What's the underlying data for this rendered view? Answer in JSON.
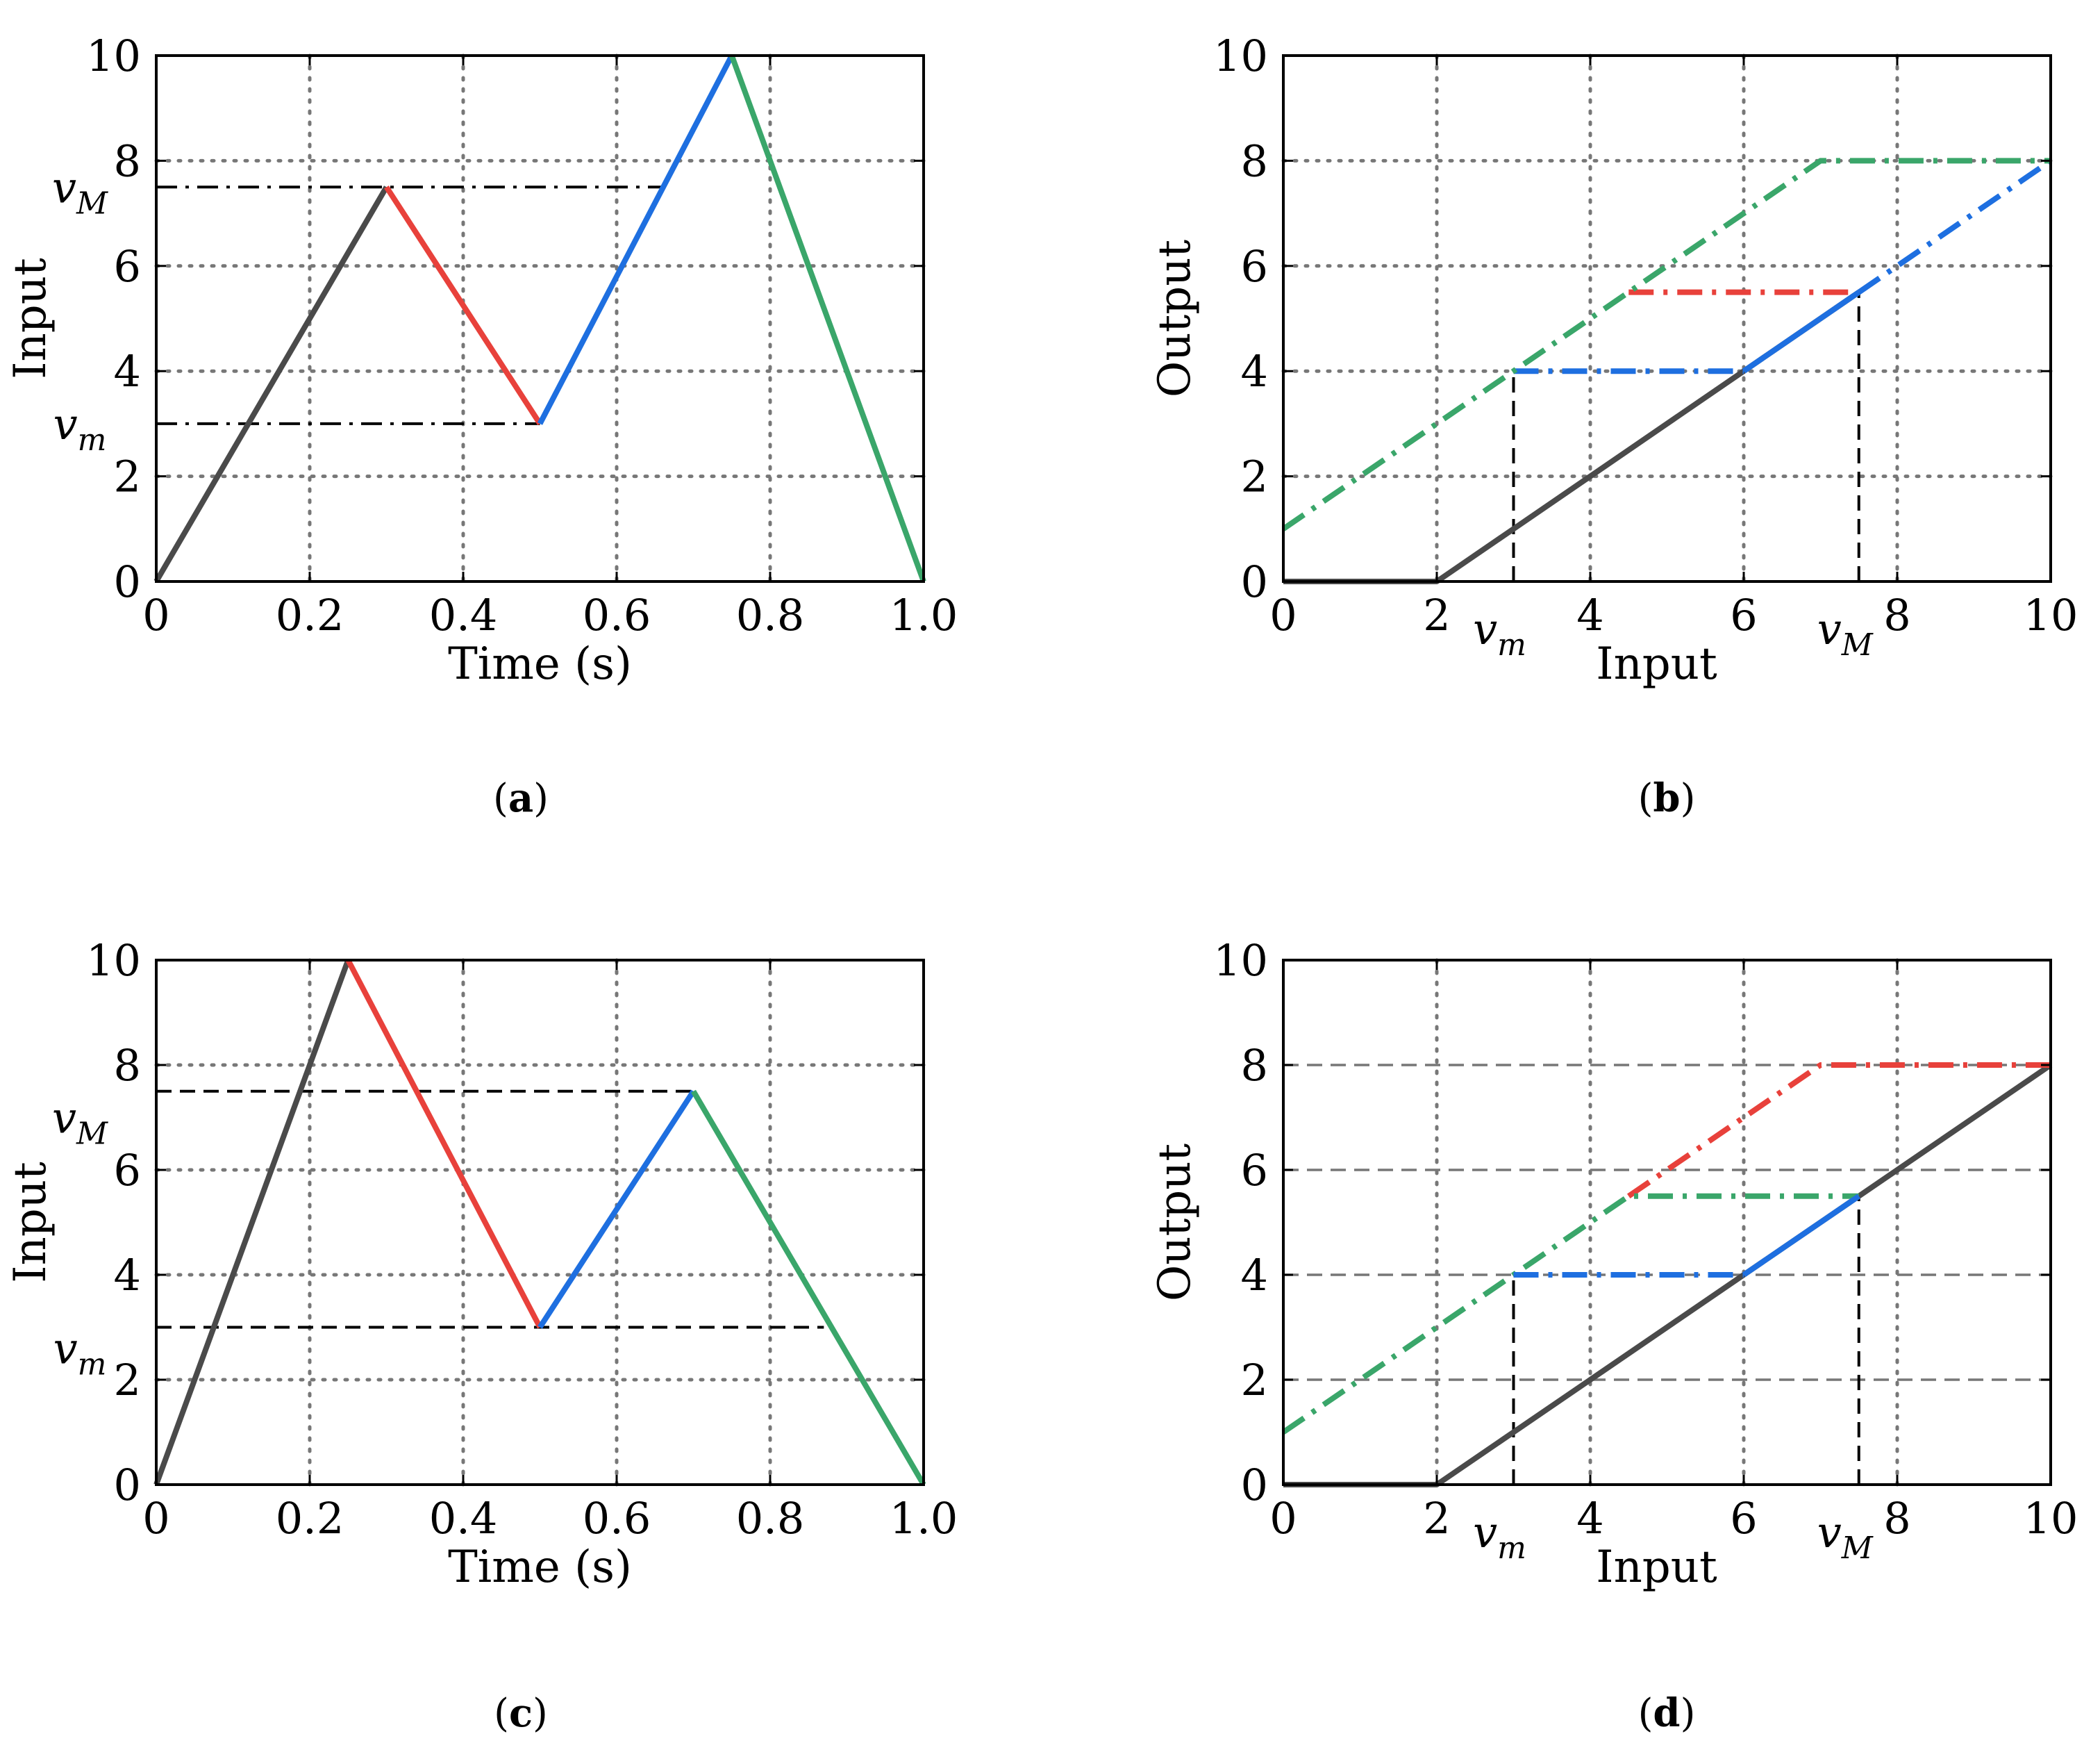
{
  "colors": {
    "black": "#4a4a4a",
    "red": "#e8413b",
    "blue": "#1e6fe0",
    "green": "#3aa66a",
    "grid": "#777777",
    "guide": "#000000"
  },
  "chart_data": [
    {
      "id": "a",
      "type": "line",
      "caption": "a",
      "xlabel": "Time (s)",
      "ylabel": "Input",
      "xlim": [
        0,
        1.0
      ],
      "ylim": [
        0,
        10
      ],
      "xticks": [
        {
          "v": 0,
          "l": "0"
        },
        {
          "v": 0.2,
          "l": "0.2"
        },
        {
          "v": 0.4,
          "l": "0.4"
        },
        {
          "v": 0.6,
          "l": "0.6"
        },
        {
          "v": 0.8,
          "l": "0.8"
        },
        {
          "v": 1.0,
          "l": "1.0"
        }
      ],
      "yticks": [
        {
          "v": 0,
          "l": "0"
        },
        {
          "v": 2,
          "l": "2"
        },
        {
          "v": 4,
          "l": "4"
        },
        {
          "v": 6,
          "l": "6"
        },
        {
          "v": 8,
          "l": "8"
        },
        {
          "v": 10,
          "l": "10"
        }
      ],
      "grid": "dotted",
      "series": [
        {
          "name": "rise-1",
          "color": "black",
          "style": "solid",
          "x": [
            0,
            0.3
          ],
          "y": [
            0,
            7.5
          ]
        },
        {
          "name": "fall-1",
          "color": "red",
          "style": "solid",
          "x": [
            0.3,
            0.5
          ],
          "y": [
            7.5,
            3
          ]
        },
        {
          "name": "rise-2",
          "color": "blue",
          "style": "solid",
          "x": [
            0.5,
            0.75
          ],
          "y": [
            3,
            10
          ]
        },
        {
          "name": "fall-2",
          "color": "green",
          "style": "solid",
          "x": [
            0.75,
            1.0
          ],
          "y": [
            10,
            0
          ]
        }
      ],
      "guides": [
        {
          "name": "vM-guide",
          "style": "dashdot",
          "x": [
            0,
            0.66
          ],
          "y": [
            7.5,
            7.5
          ]
        },
        {
          "name": "vm-guide",
          "style": "dashdot",
          "x": [
            0,
            0.5
          ],
          "y": [
            3,
            3
          ]
        }
      ],
      "annotations": [
        {
          "name": "vM-label",
          "base": "v",
          "sub": "M",
          "axis": "y",
          "value": 7.5
        },
        {
          "name": "vm-label",
          "base": "v",
          "sub": "m",
          "axis": "y",
          "value": 3
        }
      ]
    },
    {
      "id": "b",
      "type": "line",
      "caption": "b",
      "xlabel": "Input",
      "ylabel": "Output",
      "xlim": [
        0,
        10
      ],
      "ylim": [
        0,
        10
      ],
      "xticks": [
        {
          "v": 0,
          "l": "0"
        },
        {
          "v": 2,
          "l": "2"
        },
        {
          "v": 4,
          "l": "4"
        },
        {
          "v": 6,
          "l": "6"
        },
        {
          "v": 8,
          "l": "8"
        },
        {
          "v": 10,
          "l": "10"
        }
      ],
      "yticks": [
        {
          "v": 0,
          "l": "0"
        },
        {
          "v": 2,
          "l": "2"
        },
        {
          "v": 4,
          "l": "4"
        },
        {
          "v": 6,
          "l": "6"
        },
        {
          "v": 8,
          "l": "8"
        },
        {
          "v": 10,
          "l": "10"
        }
      ],
      "grid": "dotted",
      "series": [
        {
          "name": "black-branch",
          "color": "black",
          "style": "solid",
          "x": [
            0,
            2,
            7.5
          ],
          "y": [
            0,
            0,
            5.5
          ]
        },
        {
          "name": "red-branch",
          "color": "red",
          "style": "dashdot",
          "x": [
            4.5,
            7.5
          ],
          "y": [
            5.5,
            5.5
          ]
        },
        {
          "name": "blue-branch-flat",
          "color": "blue",
          "style": "dashdot",
          "x": [
            3,
            6
          ],
          "y": [
            4,
            4
          ]
        },
        {
          "name": "blue-branch-rise",
          "color": "blue",
          "style": "solid",
          "x": [
            6,
            7.5
          ],
          "y": [
            4,
            5.5
          ]
        },
        {
          "name": "blue-branch-end",
          "color": "blue",
          "style": "dashdot",
          "x": [
            7.5,
            10
          ],
          "y": [
            5.5,
            8
          ]
        },
        {
          "name": "green-branch",
          "color": "green",
          "style": "dashdot",
          "x": [
            0,
            7,
            10
          ],
          "y": [
            1,
            8,
            8
          ]
        }
      ],
      "guides": [
        {
          "name": "vm-drop",
          "style": "dashed",
          "x": [
            3,
            3
          ],
          "y": [
            0,
            4
          ]
        },
        {
          "name": "vM-drop",
          "style": "dashed",
          "x": [
            7.5,
            7.5
          ],
          "y": [
            0,
            5.5
          ]
        }
      ],
      "annotations": [
        {
          "name": "vm-label",
          "base": "v",
          "sub": "m",
          "axis": "x",
          "value": 3
        },
        {
          "name": "vM-label",
          "base": "v",
          "sub": "M",
          "axis": "x",
          "value": 7.5
        }
      ]
    },
    {
      "id": "c",
      "type": "line",
      "caption": "c",
      "xlabel": "Time (s)",
      "ylabel": "Input",
      "xlim": [
        0,
        1.0
      ],
      "ylim": [
        0,
        10
      ],
      "xticks": [
        {
          "v": 0,
          "l": "0"
        },
        {
          "v": 0.2,
          "l": "0.2"
        },
        {
          "v": 0.4,
          "l": "0.4"
        },
        {
          "v": 0.6,
          "l": "0.6"
        },
        {
          "v": 0.8,
          "l": "0.8"
        },
        {
          "v": 1.0,
          "l": "1.0"
        }
      ],
      "yticks": [
        {
          "v": 0,
          "l": "0"
        },
        {
          "v": 2,
          "l": "2"
        },
        {
          "v": 4,
          "l": "4"
        },
        {
          "v": 6,
          "l": "6"
        },
        {
          "v": 8,
          "l": "8"
        },
        {
          "v": 10,
          "l": "10"
        }
      ],
      "grid": "dotted",
      "series": [
        {
          "name": "rise-1",
          "color": "black",
          "style": "solid",
          "x": [
            0,
            0.25
          ],
          "y": [
            0,
            10
          ]
        },
        {
          "name": "fall-1",
          "color": "red",
          "style": "solid",
          "x": [
            0.25,
            0.5
          ],
          "y": [
            10,
            3
          ]
        },
        {
          "name": "rise-2",
          "color": "blue",
          "style": "solid",
          "x": [
            0.5,
            0.7
          ],
          "y": [
            3,
            7.5
          ]
        },
        {
          "name": "fall-2",
          "color": "green",
          "style": "solid",
          "x": [
            0.7,
            1.0
          ],
          "y": [
            7.5,
            0
          ]
        }
      ],
      "guides": [
        {
          "name": "vM-guide",
          "style": "dashed",
          "x": [
            0,
            0.7
          ],
          "y": [
            7.5,
            7.5
          ]
        },
        {
          "name": "vm-guide",
          "style": "dashed",
          "x": [
            0,
            0.87
          ],
          "y": [
            3,
            3
          ]
        }
      ],
      "annotations": [
        {
          "name": "vM-label",
          "base": "v",
          "sub": "M",
          "axis": "y",
          "value": 7.0
        },
        {
          "name": "vm-label",
          "base": "v",
          "sub": "m",
          "axis": "y",
          "value": 2.6
        }
      ]
    },
    {
      "id": "d",
      "type": "line",
      "caption": "d",
      "xlabel": "Input",
      "ylabel": "Output",
      "xlim": [
        0,
        10
      ],
      "ylim": [
        0,
        10
      ],
      "xticks": [
        {
          "v": 0,
          "l": "0"
        },
        {
          "v": 2,
          "l": "2"
        },
        {
          "v": 4,
          "l": "4"
        },
        {
          "v": 6,
          "l": "6"
        },
        {
          "v": 8,
          "l": "8"
        },
        {
          "v": 10,
          "l": "10"
        }
      ],
      "yticks": [
        {
          "v": 0,
          "l": "0"
        },
        {
          "v": 2,
          "l": "2"
        },
        {
          "v": 4,
          "l": "4"
        },
        {
          "v": 6,
          "l": "6"
        },
        {
          "v": 8,
          "l": "8"
        },
        {
          "v": 10,
          "l": "10"
        }
      ],
      "grid": "dashed-y-dotted-x",
      "series": [
        {
          "name": "black-branch",
          "color": "black",
          "style": "solid",
          "x": [
            0,
            2,
            10
          ],
          "y": [
            0,
            0,
            8
          ]
        },
        {
          "name": "red-branch",
          "color": "red",
          "style": "dashdot",
          "x": [
            4.5,
            7,
            10
          ],
          "y": [
            5.5,
            8,
            8
          ]
        },
        {
          "name": "green-branch-flat",
          "color": "green",
          "style": "dashdot",
          "x": [
            0,
            4.5,
            7.5
          ],
          "y": [
            1,
            5.5,
            5.5
          ]
        },
        {
          "name": "blue-branch-flat",
          "color": "blue",
          "style": "dashdot",
          "x": [
            3,
            6
          ],
          "y": [
            4,
            4
          ]
        },
        {
          "name": "blue-branch-rise",
          "color": "blue",
          "style": "solid",
          "x": [
            6,
            7.5
          ],
          "y": [
            4,
            5.5
          ]
        }
      ],
      "guides": [
        {
          "name": "vm-drop",
          "style": "dashed",
          "x": [
            3,
            3
          ],
          "y": [
            0,
            4
          ]
        },
        {
          "name": "vM-drop",
          "style": "dashed",
          "x": [
            7.5,
            7.5
          ],
          "y": [
            0,
            5.5
          ]
        }
      ],
      "annotations": [
        {
          "name": "vm-label",
          "base": "v",
          "sub": "m",
          "axis": "x",
          "value": 3
        },
        {
          "name": "vM-label",
          "base": "v",
          "sub": "M",
          "axis": "x",
          "value": 7.5
        }
      ]
    }
  ]
}
